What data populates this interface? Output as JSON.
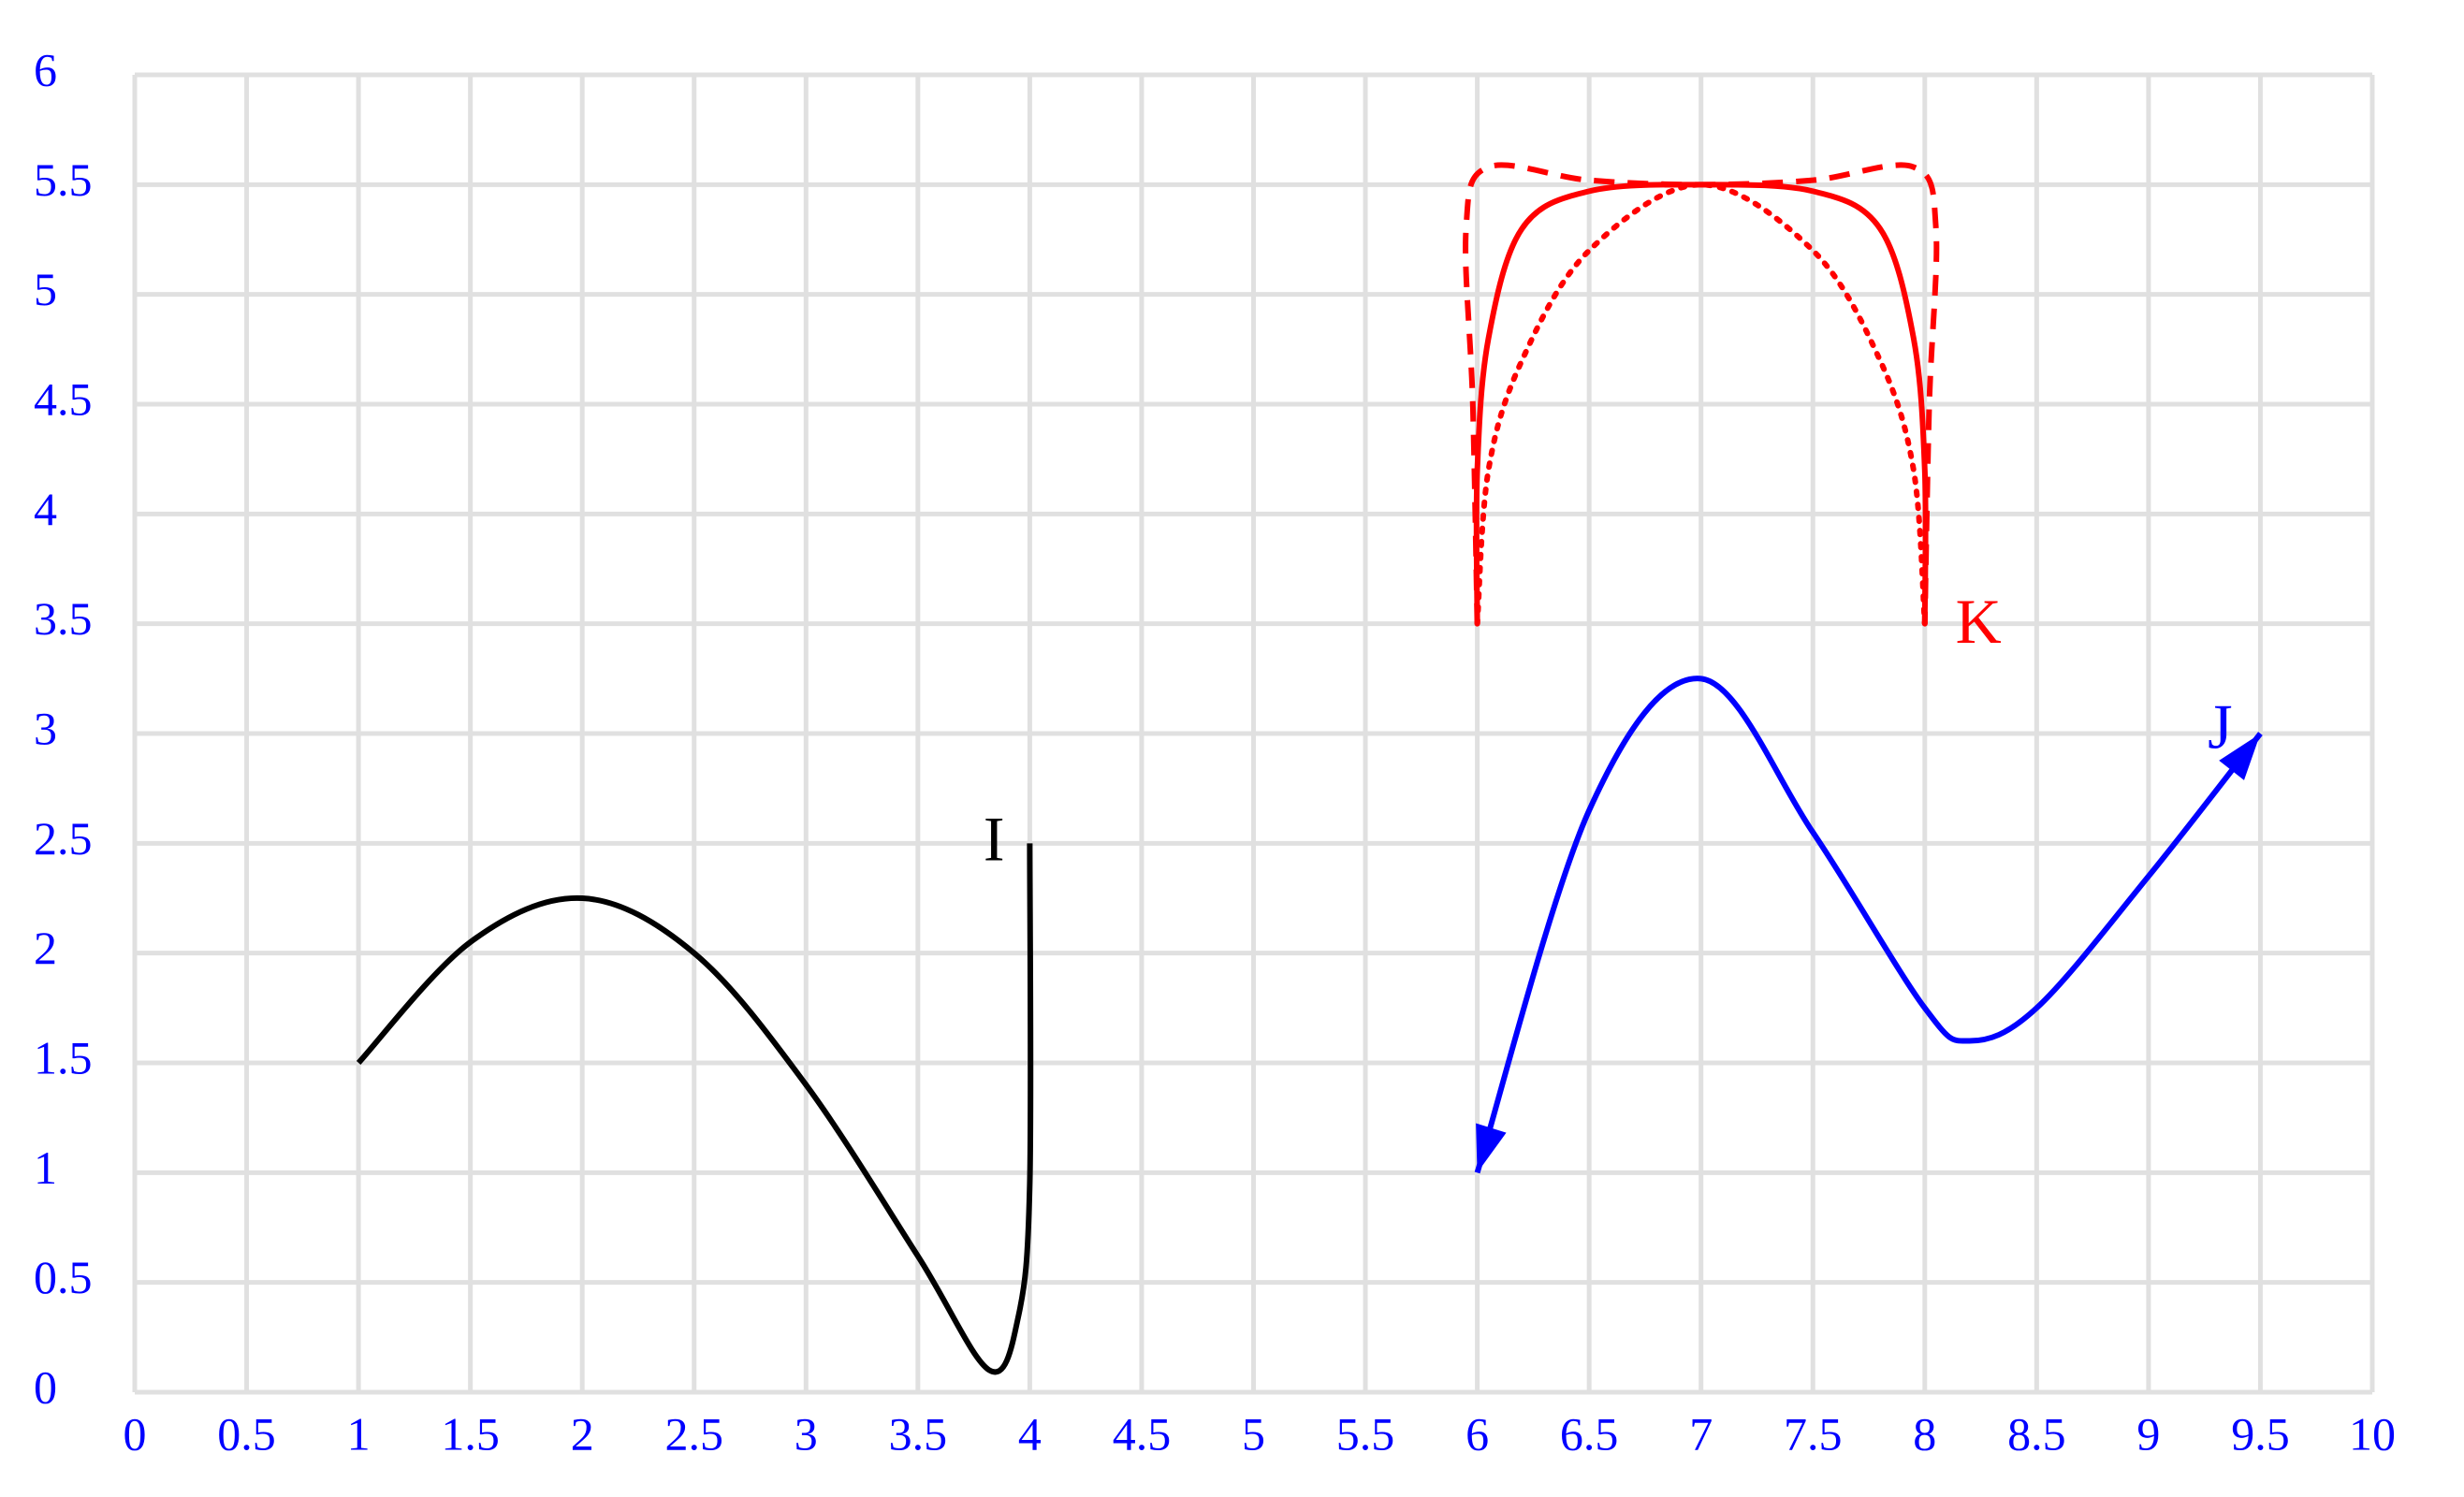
{
  "chart_data": {
    "type": "line",
    "xlim": [
      0,
      10
    ],
    "ylim": [
      0,
      6
    ],
    "xticks": [
      0,
      0.5,
      1,
      1.5,
      2,
      2.5,
      3,
      3.5,
      4,
      4.5,
      5,
      5.5,
      6,
      6.5,
      7,
      7.5,
      8,
      8.5,
      9,
      9.5,
      10
    ],
    "yticks": [
      0,
      0.5,
      1,
      1.5,
      2,
      2.5,
      3,
      3.5,
      4,
      4.5,
      5,
      5.5,
      6
    ],
    "grid": true,
    "grid_color": "#e0e0e0",
    "tick_color": "#0000ff",
    "series": [
      {
        "name": "I",
        "color": "#000000",
        "dash": "solid",
        "x": [
          1,
          1.5,
          2,
          2.5,
          3,
          3.5,
          3.82,
          3.95,
          4,
          4
        ],
        "values": [
          1.5,
          2.05,
          2.25,
          2.0,
          1.4,
          0.62,
          0.1,
          0.35,
          0.95,
          2.5
        ]
      },
      {
        "name": "J",
        "color": "#0000ff",
        "dash": "solid",
        "arrows": "both",
        "x": [
          6,
          6.5,
          7,
          7.5,
          8,
          8.2,
          8.5,
          9,
          9.5
        ],
        "values": [
          1,
          2.65,
          3.25,
          2.55,
          1.75,
          1.6,
          1.75,
          2.35,
          3.0
        ]
      },
      {
        "name": "K",
        "color": "#ff0000",
        "dash": "solid",
        "x": [
          6,
          6,
          6.05,
          6.2,
          6.5,
          7,
          7.5,
          7.8,
          7.95,
          8,
          8
        ],
        "values": [
          3.5,
          4.2,
          4.8,
          5.3,
          5.47,
          5.5,
          5.47,
          5.3,
          4.8,
          4.2,
          3.5
        ]
      },
      {
        "color": "#ff0000",
        "dash": "dashed",
        "x": [
          6,
          5.98,
          5.95,
          6.05,
          6.5,
          7,
          7.5,
          7.95,
          8.05,
          8.02,
          8
        ],
        "values": [
          3.5,
          4.5,
          5.3,
          5.58,
          5.52,
          5.5,
          5.52,
          5.58,
          5.3,
          4.5,
          3.5
        ]
      },
      {
        "color": "#ff0000",
        "dash": "dotted",
        "x": [
          6,
          6.05,
          6.2,
          6.5,
          7,
          7.5,
          7.8,
          7.95,
          8
        ],
        "values": [
          3.5,
          4.2,
          4.7,
          5.2,
          5.5,
          5.2,
          4.7,
          4.2,
          3.5
        ]
      }
    ],
    "annotations": [
      {
        "text": "I",
        "x": 3.84,
        "y": 2.49,
        "color": "#000000"
      },
      {
        "text": "J",
        "x": 9.32,
        "y": 3.0,
        "color": "#0000ff"
      },
      {
        "text": "K",
        "x": 8.24,
        "y": 3.48,
        "color": "#ff0000"
      }
    ]
  }
}
